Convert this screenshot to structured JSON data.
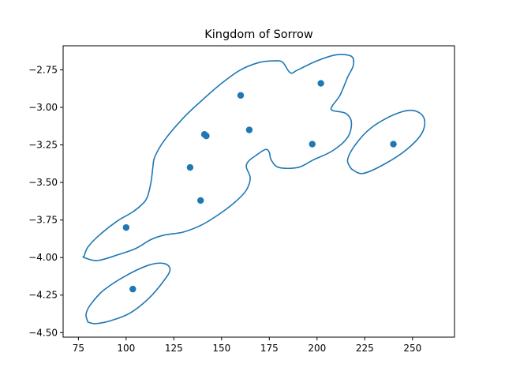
{
  "chart_data": {
    "type": "scatter",
    "title": "Kingdom of Sorrow",
    "xlabel": "",
    "ylabel": "",
    "xlim": [
      67,
      272
    ],
    "ylim": [
      -4.53,
      -2.59
    ],
    "xticks": [
      75,
      100,
      125,
      150,
      175,
      200,
      225,
      250
    ],
    "yticks": [
      -2.75,
      -3.0,
      -3.25,
      -3.5,
      -3.75,
      -4.0,
      -4.25,
      -4.5
    ],
    "xtick_labels": [
      "75",
      "100",
      "125",
      "150",
      "175",
      "200",
      "225",
      "250"
    ],
    "ytick_labels": [
      "−2.75",
      "−3.00",
      "−3.25",
      "−3.50",
      "−3.75",
      "−4.00",
      "−4.25",
      "−4.50"
    ],
    "grid": false,
    "color": "#1f77b4",
    "points": [
      {
        "x": 100,
        "y": -3.8
      },
      {
        "x": 103.5,
        "y": -4.21
      },
      {
        "x": 133.5,
        "y": -3.4
      },
      {
        "x": 139,
        "y": -3.62
      },
      {
        "x": 141,
        "y": -3.18
      },
      {
        "x": 142,
        "y": -3.19
      },
      {
        "x": 160,
        "y": -2.92
      },
      {
        "x": 164.5,
        "y": -3.15
      },
      {
        "x": 197.5,
        "y": -3.245
      },
      {
        "x": 202,
        "y": -2.84
      },
      {
        "x": 240,
        "y": -3.245
      }
    ],
    "contours": [
      {
        "name": "main-region",
        "points": [
          [
            78,
            -3.99
          ],
          [
            80,
            -3.93
          ],
          [
            86,
            -3.85
          ],
          [
            95,
            -3.76
          ],
          [
            103,
            -3.7
          ],
          [
            108,
            -3.65
          ],
          [
            111,
            -3.6
          ],
          [
            113,
            -3.5
          ],
          [
            114,
            -3.4
          ],
          [
            115,
            -3.33
          ],
          [
            120,
            -3.22
          ],
          [
            130,
            -3.07
          ],
          [
            140,
            -2.95
          ],
          [
            150,
            -2.84
          ],
          [
            160,
            -2.75
          ],
          [
            170,
            -2.7
          ],
          [
            178,
            -2.69
          ],
          [
            182,
            -2.7
          ],
          [
            186,
            -2.77
          ],
          [
            190,
            -2.75
          ],
          [
            200,
            -2.69
          ],
          [
            210,
            -2.65
          ],
          [
            218,
            -2.66
          ],
          [
            219,
            -2.72
          ],
          [
            216,
            -2.8
          ],
          [
            212,
            -2.92
          ],
          [
            208,
            -2.99
          ],
          [
            208,
            -3.02
          ],
          [
            215,
            -3.04
          ],
          [
            218,
            -3.1
          ],
          [
            216,
            -3.2
          ],
          [
            208,
            -3.29
          ],
          [
            198,
            -3.35
          ],
          [
            190,
            -3.4
          ],
          [
            180,
            -3.4
          ],
          [
            176,
            -3.35
          ],
          [
            175,
            -3.3
          ],
          [
            173,
            -3.28
          ],
          [
            168,
            -3.32
          ],
          [
            164,
            -3.36
          ],
          [
            163,
            -3.4
          ],
          [
            165,
            -3.47
          ],
          [
            163,
            -3.55
          ],
          [
            158,
            -3.62
          ],
          [
            150,
            -3.7
          ],
          [
            140,
            -3.78
          ],
          [
            130,
            -3.83
          ],
          [
            120,
            -3.85
          ],
          [
            113,
            -3.88
          ],
          [
            105,
            -3.94
          ],
          [
            96,
            -3.98
          ],
          [
            85,
            -4.02
          ],
          [
            78,
            -4.0
          ],
          [
            78,
            -3.99
          ]
        ]
      },
      {
        "name": "lower-left-region",
        "points": [
          [
            80,
            -4.43
          ],
          [
            84,
            -4.44
          ],
          [
            92,
            -4.42
          ],
          [
            102,
            -4.37
          ],
          [
            112,
            -4.27
          ],
          [
            120,
            -4.15
          ],
          [
            123,
            -4.08
          ],
          [
            120,
            -4.04
          ],
          [
            112,
            -4.05
          ],
          [
            100,
            -4.12
          ],
          [
            88,
            -4.22
          ],
          [
            81,
            -4.32
          ],
          [
            79,
            -4.38
          ],
          [
            80,
            -4.43
          ]
        ]
      },
      {
        "name": "right-region",
        "points": [
          [
            218,
            -3.41
          ],
          [
            224,
            -3.44
          ],
          [
            235,
            -3.38
          ],
          [
            247,
            -3.28
          ],
          [
            255,
            -3.17
          ],
          [
            256,
            -3.07
          ],
          [
            250,
            -3.02
          ],
          [
            240,
            -3.05
          ],
          [
            228,
            -3.14
          ],
          [
            220,
            -3.25
          ],
          [
            216,
            -3.35
          ],
          [
            218,
            -3.41
          ]
        ]
      }
    ]
  }
}
